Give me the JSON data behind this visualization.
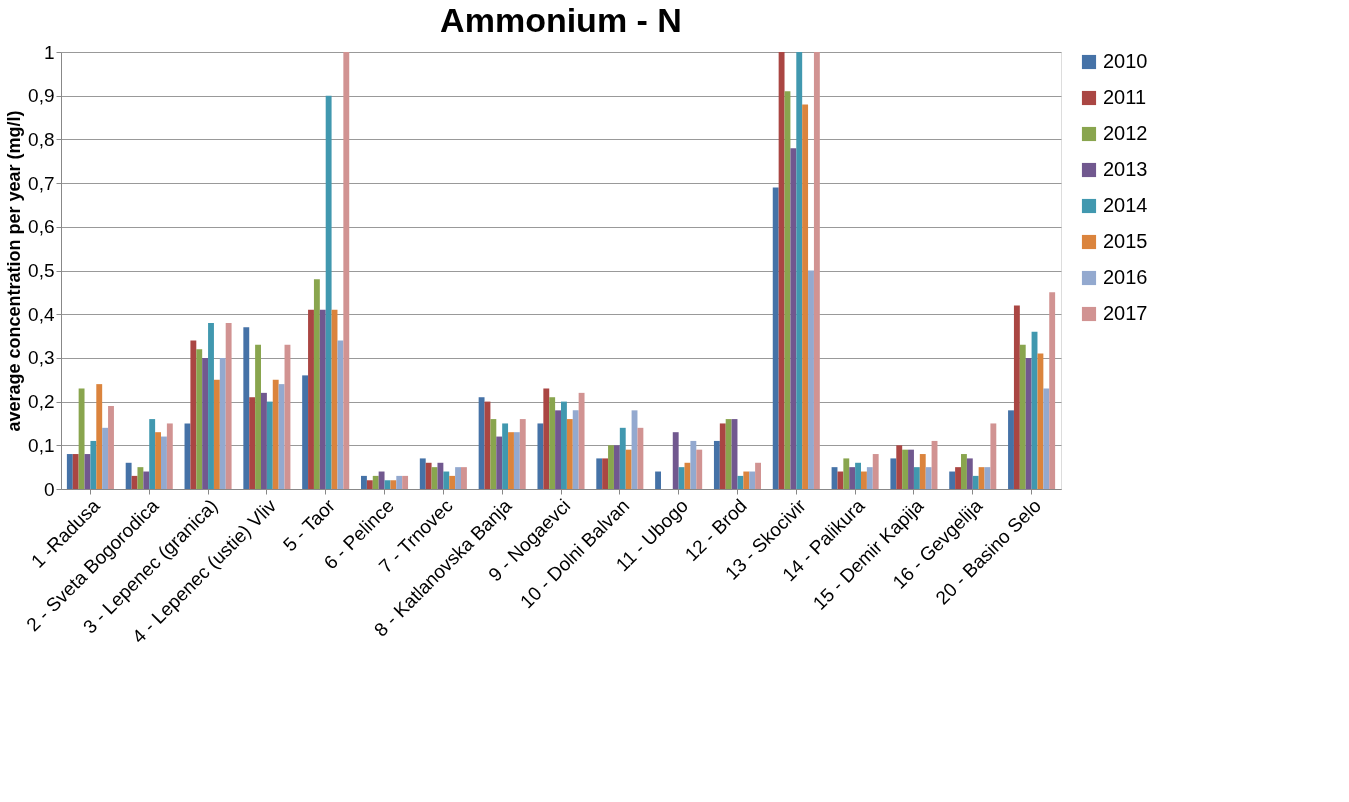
{
  "chart_data": {
    "type": "bar",
    "title": "Ammonium - N",
    "ylabel": "average concentration per year (mg/l)",
    "categories": [
      "1 -Radusa",
      "2 - Sveta Bogorodica",
      "3 - Lepenec (granica)",
      "4 - Lepenec (ustie) Vliv",
      "5 - Taor",
      "6 - Pelince",
      "7 - Trnovec",
      "8 - Katlanovska Banja",
      "9 - Nogaevci",
      "10 - Dolni Balvan",
      "11 - Ubogo",
      "12 - Brod",
      "13 - Skocivir",
      "14 - Palikura",
      "15 - Demir Kapija",
      "16 - Gevgelija",
      "20 - Basino Selo"
    ],
    "series": [
      {
        "name": "2010",
        "color": "#4572a7",
        "values": [
          0.08,
          0.06,
          0.15,
          0.37,
          0.26,
          0.03,
          0.07,
          0.21,
          0.15,
          0.07,
          0.04,
          0.11,
          0.69,
          0.05,
          0.07,
          0.04,
          0.18
        ]
      },
      {
        "name": "2011",
        "color": "#aa4643",
        "values": [
          0.08,
          0.03,
          0.34,
          0.21,
          0.41,
          0.02,
          0.06,
          0.2,
          0.23,
          0.07,
          null,
          0.15,
          1.0,
          0.04,
          0.1,
          0.05,
          0.42
        ]
      },
      {
        "name": "2012",
        "color": "#89a54e",
        "values": [
          0.23,
          0.05,
          0.32,
          0.33,
          0.48,
          0.03,
          0.05,
          0.16,
          0.21,
          0.1,
          null,
          0.16,
          0.91,
          0.07,
          0.09,
          0.08,
          0.33
        ]
      },
      {
        "name": "2013",
        "color": "#71588f",
        "values": [
          0.08,
          0.04,
          0.3,
          0.22,
          0.41,
          0.04,
          0.06,
          0.12,
          0.18,
          0.1,
          0.13,
          0.16,
          0.78,
          0.05,
          0.09,
          0.07,
          0.3
        ]
      },
      {
        "name": "2014",
        "color": "#4198af",
        "values": [
          0.11,
          0.16,
          0.38,
          0.2,
          0.9,
          0.02,
          0.04,
          0.15,
          0.2,
          0.14,
          0.05,
          0.03,
          1.0,
          0.06,
          0.05,
          0.03,
          0.36
        ]
      },
      {
        "name": "2015",
        "color": "#db843d",
        "values": [
          0.24,
          0.13,
          0.25,
          0.25,
          0.41,
          0.02,
          0.03,
          0.13,
          0.16,
          0.09,
          0.06,
          0.04,
          0.88,
          0.04,
          0.08,
          0.05,
          0.31
        ]
      },
      {
        "name": "2016",
        "color": "#93a9cf",
        "values": [
          0.14,
          0.12,
          0.3,
          0.24,
          0.34,
          0.03,
          0.05,
          0.13,
          0.18,
          0.18,
          0.11,
          0.04,
          0.5,
          0.05,
          0.05,
          0.05,
          0.23
        ]
      },
      {
        "name": "2017",
        "color": "#d19392",
        "values": [
          0.19,
          0.15,
          0.38,
          0.33,
          1.0,
          0.03,
          0.05,
          0.16,
          0.22,
          0.14,
          0.09,
          0.06,
          1.0,
          0.08,
          0.11,
          0.15,
          0.45
        ]
      }
    ],
    "ylim": [
      0,
      1
    ],
    "yticks": [
      0,
      {
        "value": 0.1,
        "label": "0,1"
      },
      {
        "value": 0.2,
        "label": "0,2"
      },
      {
        "value": 0.3,
        "label": "0,3"
      },
      {
        "value": 0.4,
        "label": "0,4"
      },
      {
        "value": 0.5,
        "label": "0,5"
      },
      {
        "value": 0.6,
        "label": "0,6"
      },
      {
        "value": 0.7,
        "label": "0,7"
      },
      {
        "value": 0.8,
        "label": "0,8"
      },
      {
        "value": 0.9,
        "label": "0,9"
      },
      1
    ],
    "grid": "y",
    "legend": "right"
  }
}
